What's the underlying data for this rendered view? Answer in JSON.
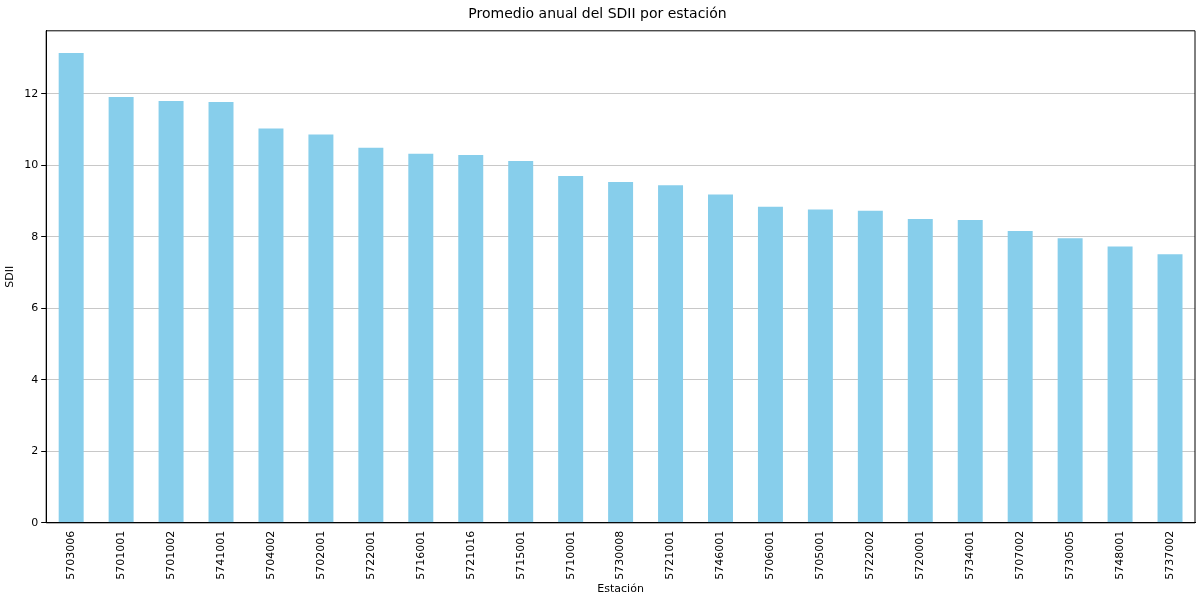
{
  "chart_data": {
    "type": "bar",
    "title": "Promedio anual del SDII por estación",
    "xlabel": "Estación",
    "ylabel": "SDII",
    "categories": [
      "5703006",
      "5701001",
      "5701002",
      "5741001",
      "5704002",
      "5702001",
      "5722001",
      "5716001",
      "5721016",
      "5715001",
      "5710001",
      "5730008",
      "5721001",
      "5746001",
      "5706001",
      "5705001",
      "5722002",
      "5720001",
      "5734001",
      "5707002",
      "5730005",
      "5748001",
      "5737002"
    ],
    "values": [
      13.14,
      11.91,
      11.8,
      11.77,
      11.03,
      10.86,
      10.49,
      10.32,
      10.29,
      10.12,
      9.7,
      9.53,
      9.44,
      9.18,
      8.84,
      8.76,
      8.73,
      8.5,
      8.47,
      8.16,
      7.96,
      7.73,
      7.51
    ],
    "color": "#87ceeb",
    "ylim": [
      0,
      13.76
    ],
    "yticks": [
      0,
      2,
      4,
      6,
      8,
      10,
      12
    ],
    "grid": "y"
  }
}
